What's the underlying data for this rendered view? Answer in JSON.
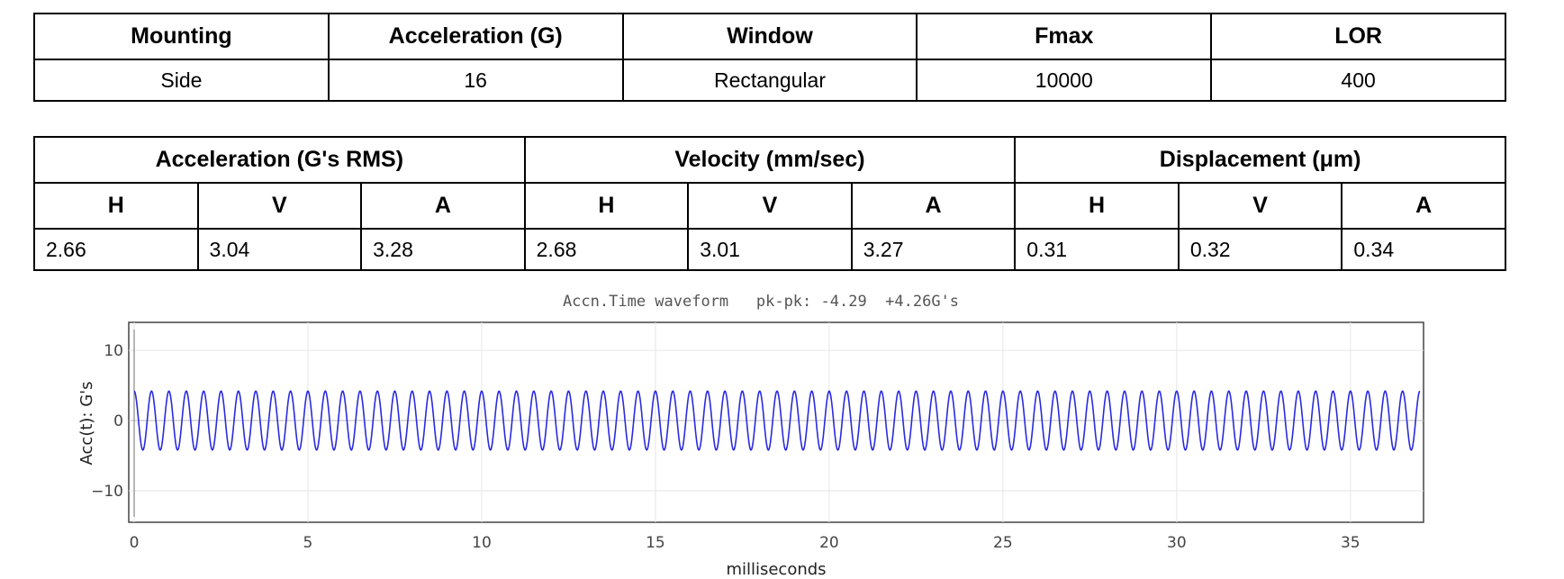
{
  "config": {
    "headers": [
      "Mounting",
      "Acceleration (G)",
      "Window",
      "Fmax",
      "LOR"
    ],
    "values": [
      "Side",
      "16",
      "Rectangular",
      "10000",
      "400"
    ]
  },
  "results": {
    "groups": [
      "Acceleration (G's RMS)",
      "Velocity (mm/sec)",
      "Displacement (μm)"
    ],
    "axes": [
      "H",
      "V",
      "A",
      "H",
      "V",
      "A",
      "H",
      "V",
      "A"
    ],
    "values": [
      "2.66",
      "3.04",
      "3.28",
      "2.68",
      "3.01",
      "3.27",
      "0.31",
      "0.32",
      "0.34"
    ]
  },
  "chart_data": {
    "type": "line",
    "title": "Accn.Time waveform   pk-pk: -4.29  +4.26G's",
    "xlabel": "milliseconds",
    "ylabel": "Acc(t): G's",
    "xlim": [
      0,
      37
    ],
    "ylim": [
      -14.5,
      14
    ],
    "xticks": [
      "0",
      "5",
      "10",
      "15",
      "20",
      "25",
      "30",
      "35"
    ],
    "yticks": [
      "10",
      "0",
      "−10"
    ],
    "grid": true,
    "series": [
      {
        "color": "#2a2ae0",
        "signal": {
          "frequency_hz": 2000,
          "amplitude": 4.2,
          "phase": 1.57,
          "x_start": 0,
          "x_end": 37
        }
      }
    ]
  }
}
